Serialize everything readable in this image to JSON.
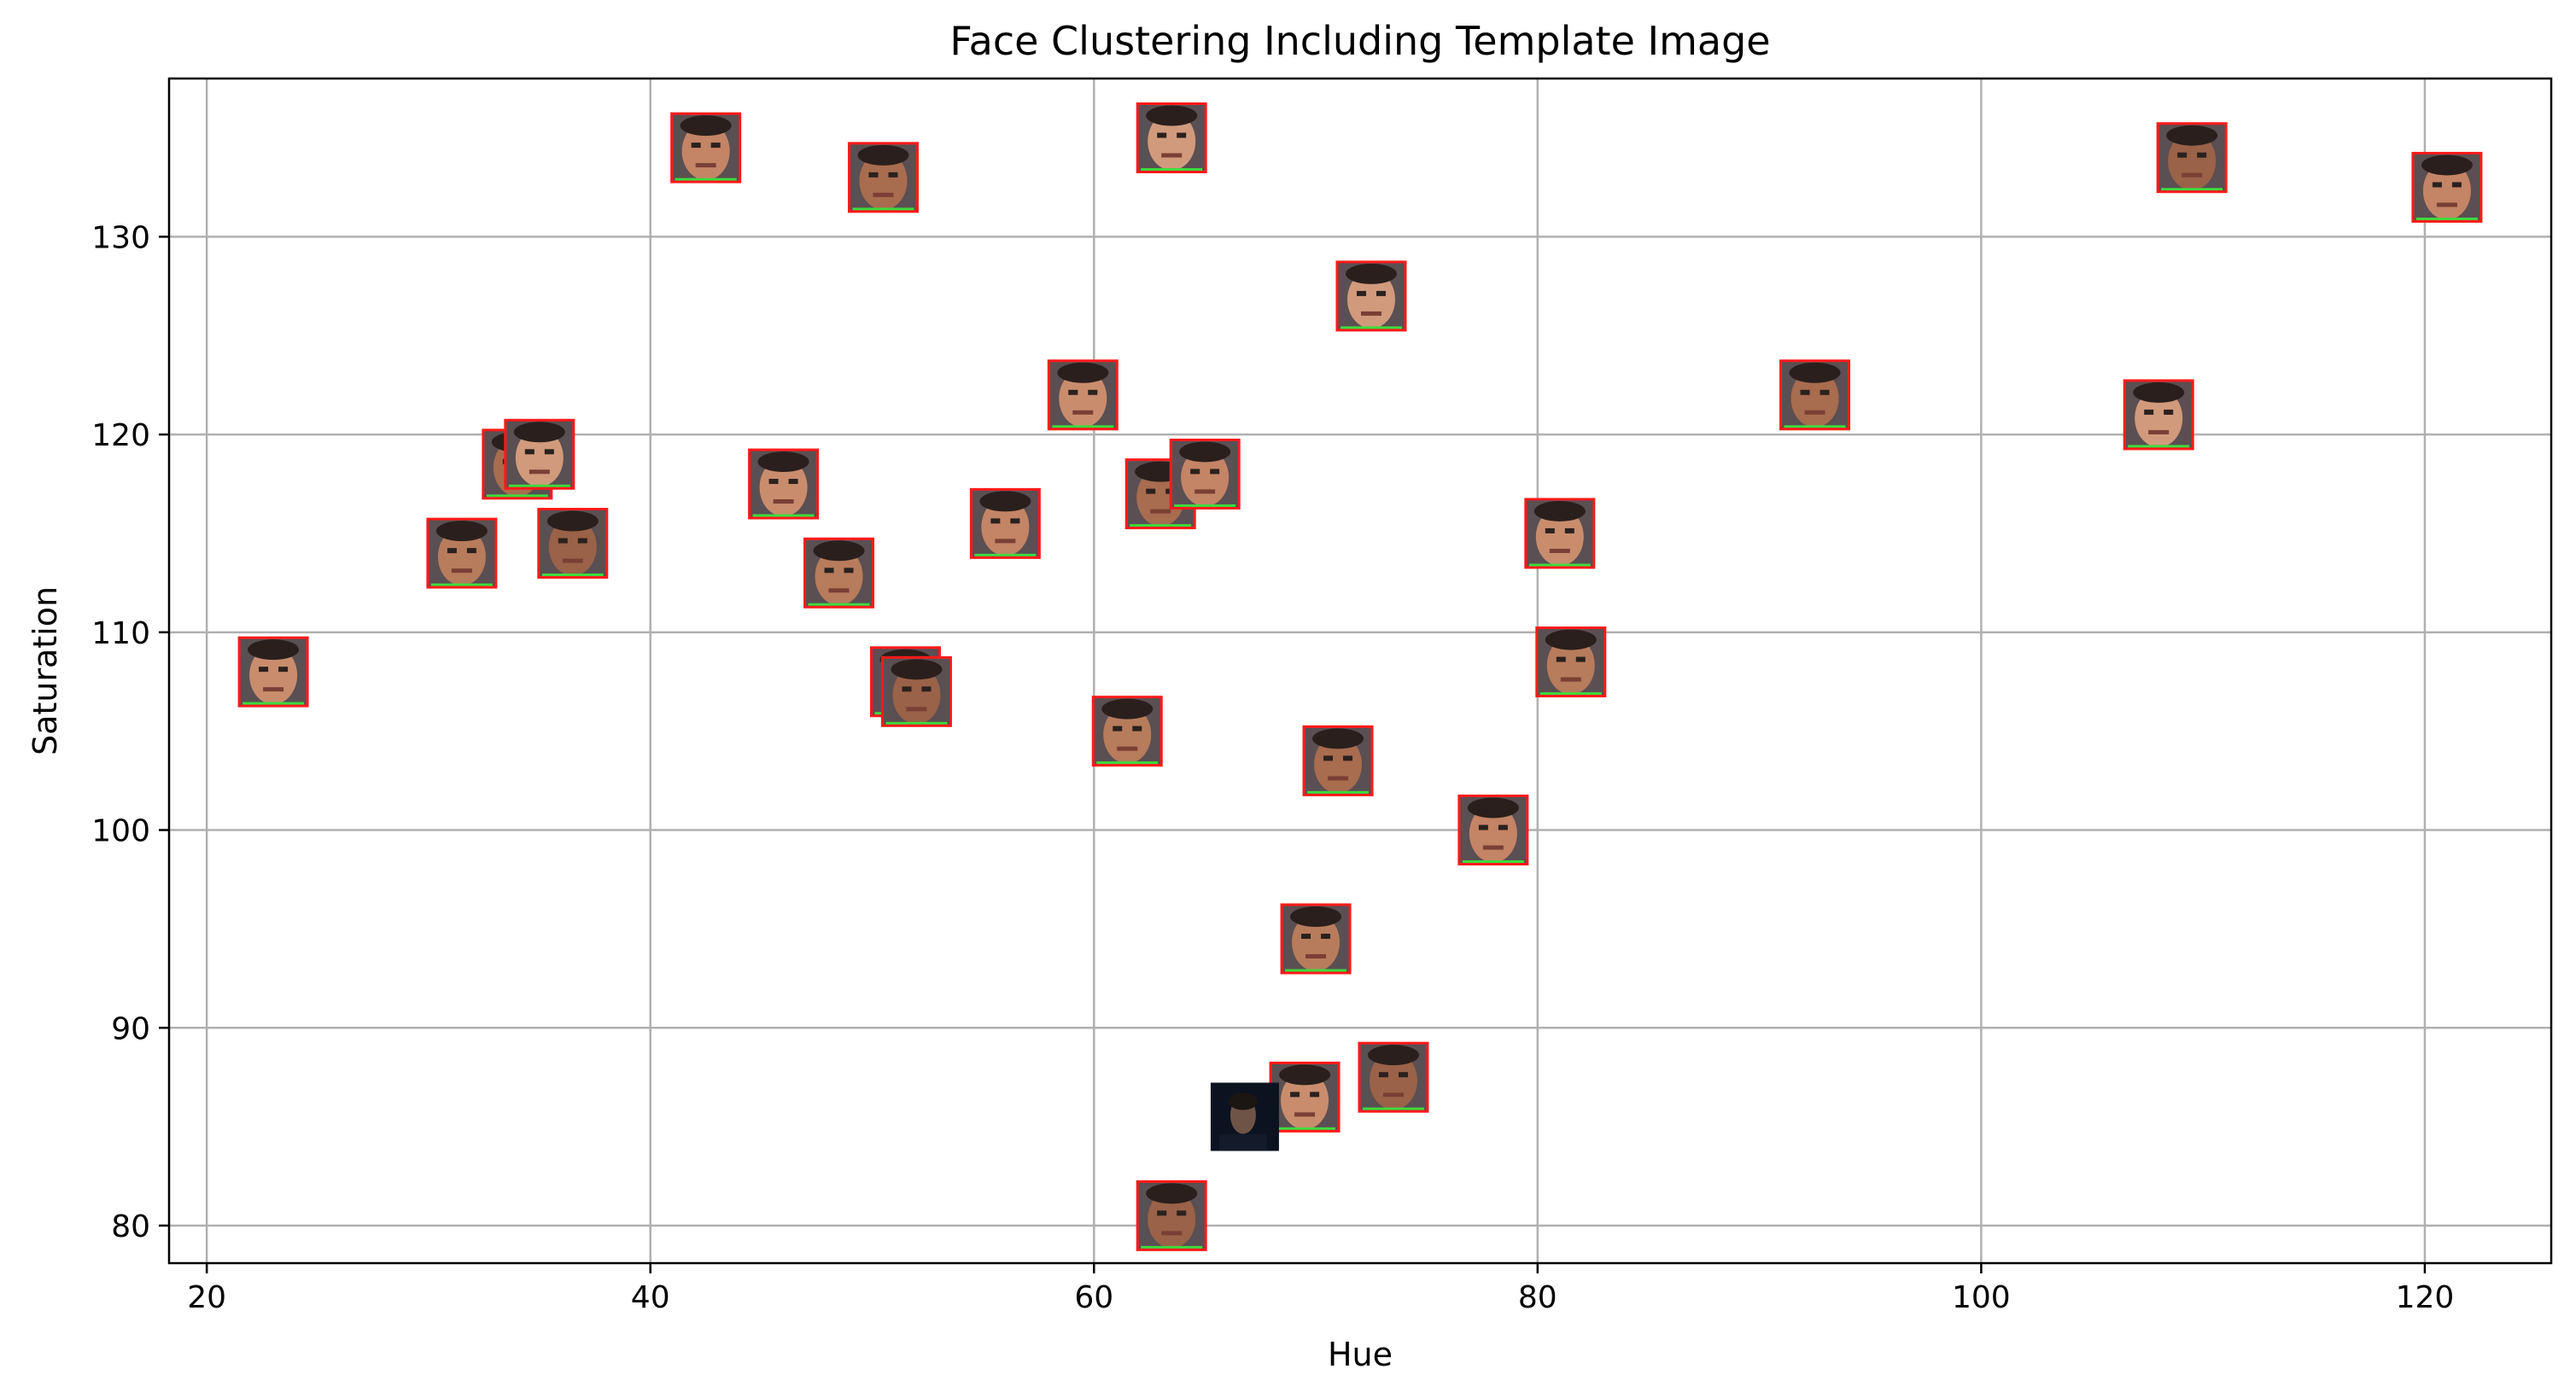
{
  "chart_data": {
    "type": "scatter",
    "title": "Face Clustering Including Template Image",
    "xlabel": "Hue",
    "ylabel": "Saturation",
    "xlim": [
      18.3,
      125.7
    ],
    "ylim": [
      78.1,
      138.0
    ],
    "xticks": [
      20,
      40,
      60,
      80,
      100,
      120
    ],
    "yticks": [
      80,
      90,
      100,
      110,
      120,
      130
    ],
    "grid": true,
    "marker": "face-thumbnail",
    "template_marker": "dark-face-thumbnail",
    "points": [
      {
        "x": 23.0,
        "y": 108.0
      },
      {
        "x": 31.5,
        "y": 114.0
      },
      {
        "x": 34.0,
        "y": 118.5
      },
      {
        "x": 35.0,
        "y": 119.0
      },
      {
        "x": 36.5,
        "y": 114.5
      },
      {
        "x": 42.5,
        "y": 134.5
      },
      {
        "x": 46.0,
        "y": 117.5
      },
      {
        "x": 48.5,
        "y": 113.0
      },
      {
        "x": 50.5,
        "y": 133.0
      },
      {
        "x": 51.5,
        "y": 107.5
      },
      {
        "x": 52.0,
        "y": 107.0
      },
      {
        "x": 56.0,
        "y": 115.5
      },
      {
        "x": 59.5,
        "y": 122.0
      },
      {
        "x": 61.5,
        "y": 105.0
      },
      {
        "x": 63.0,
        "y": 117.0
      },
      {
        "x": 63.5,
        "y": 135.0
      },
      {
        "x": 63.5,
        "y": 80.5
      },
      {
        "x": 65.0,
        "y": 118.0
      },
      {
        "x": 69.5,
        "y": 86.5
      },
      {
        "x": 70.0,
        "y": 94.5
      },
      {
        "x": 71.0,
        "y": 103.5
      },
      {
        "x": 72.5,
        "y": 127.0
      },
      {
        "x": 73.5,
        "y": 87.5
      },
      {
        "x": 78.0,
        "y": 100.0
      },
      {
        "x": 81.0,
        "y": 115.0
      },
      {
        "x": 81.5,
        "y": 108.5
      },
      {
        "x": 92.5,
        "y": 122.0
      },
      {
        "x": 108.0,
        "y": 121.0
      },
      {
        "x": 109.5,
        "y": 134.0
      },
      {
        "x": 121.0,
        "y": 132.5
      }
    ],
    "template_point": {
      "x": 66.8,
      "y": 85.5
    }
  }
}
